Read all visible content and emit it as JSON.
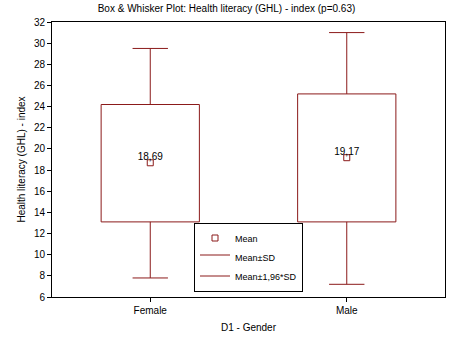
{
  "chart_data": {
    "type": "box",
    "title": "Box & Whisker Plot: Health literacy (GHL) - index (p=0.63)",
    "x_label": "D1 - Gender",
    "y_label": "Health literacy (GHL) - index",
    "categories": [
      "Female",
      "Male"
    ],
    "color": "#8b1a1a",
    "ylim": [
      6,
      32
    ],
    "yticks": [
      6,
      8,
      10,
      12,
      14,
      16,
      18,
      20,
      22,
      24,
      26,
      28,
      30,
      32
    ],
    "grid": false,
    "legend": "bottom",
    "series": [
      {
        "name": "Mean",
        "type": "marker",
        "values": [
          18.69,
          19.17
        ],
        "value_labels": [
          "18,69",
          "19,17"
        ],
        "data_labels": true
      },
      {
        "name": "Mean±SD",
        "type": "box",
        "low": [
          13.1,
          13.1
        ],
        "high": [
          24.2,
          25.2
        ]
      },
      {
        "name": "Mean±1,96*SD",
        "type": "whisker",
        "low": [
          7.8,
          7.2
        ],
        "high": [
          29.5,
          31.0
        ]
      }
    ]
  }
}
